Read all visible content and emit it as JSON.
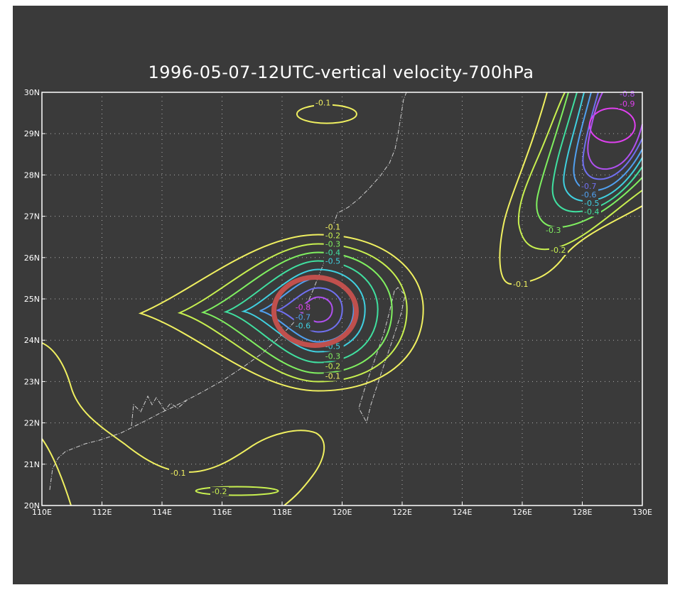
{
  "chart_data": {
    "type": "contour",
    "title": "1996-05-07-12UTC-vertical velocity-700hPa",
    "xlabel": "",
    "ylabel": "",
    "xlim": [
      110,
      130
    ],
    "ylim": [
      20,
      30
    ],
    "x_ticks": [
      "110E",
      "112E",
      "114E",
      "116E",
      "118E",
      "120E",
      "122E",
      "124E",
      "126E",
      "128E",
      "130E"
    ],
    "y_ticks": [
      "20N",
      "21N",
      "22N",
      "23N",
      "24N",
      "25N",
      "26N",
      "27N",
      "28N",
      "29N",
      "30N"
    ],
    "grid": true,
    "level_colors": {
      "-0.1": "#f0f060",
      "-0.2": "#c8f050",
      "-0.3": "#80f060",
      "-0.4": "#40e0a0",
      "-0.5": "#40d0e0",
      "-0.6": "#50a0f0",
      "-0.7": "#7070f0",
      "-0.8": "#b050f0",
      "-0.9": "#e040f0"
    },
    "systems": [
      {
        "name": "central",
        "center_lon": 119.2,
        "center_lat": 24.75,
        "levels": [
          -0.1,
          -0.2,
          -0.3,
          -0.4,
          -0.5,
          -0.6,
          -0.7,
          -0.8
        ],
        "labels": [
          "-0.1",
          "-0.2",
          "-0.3",
          "-0.4",
          "-0.5",
          "-0.5",
          "-0.3",
          "-0.2",
          "-0.1",
          "-0.7",
          "-0.6",
          "-0.8"
        ]
      },
      {
        "name": "northeast",
        "center_lon": 129.0,
        "center_lat": 29.2,
        "levels": [
          -0.1,
          -0.2,
          -0.3,
          -0.4,
          -0.5,
          -0.6,
          -0.7,
          -0.8,
          -0.9
        ],
        "labels": [
          "-0.1",
          "-0.2",
          "-0.3",
          "-0.4",
          "-0.5",
          "-0.6",
          "-0.7",
          "-0.9",
          "-0.8"
        ]
      },
      {
        "name": "north",
        "center_lon": 119.3,
        "center_lat": 29.25,
        "levels": [
          -0.1
        ],
        "labels": [
          "-0.1"
        ]
      },
      {
        "name": "south",
        "center_lon": 116.5,
        "center_lat": 20.3,
        "levels": [
          -0.1,
          -0.2
        ],
        "labels": [
          "-0.1",
          "-0.2"
        ]
      }
    ],
    "annotation": {
      "type": "ellipse",
      "color": "#c0504d",
      "center_lon": 119.1,
      "center_lat": 24.7
    }
  }
}
